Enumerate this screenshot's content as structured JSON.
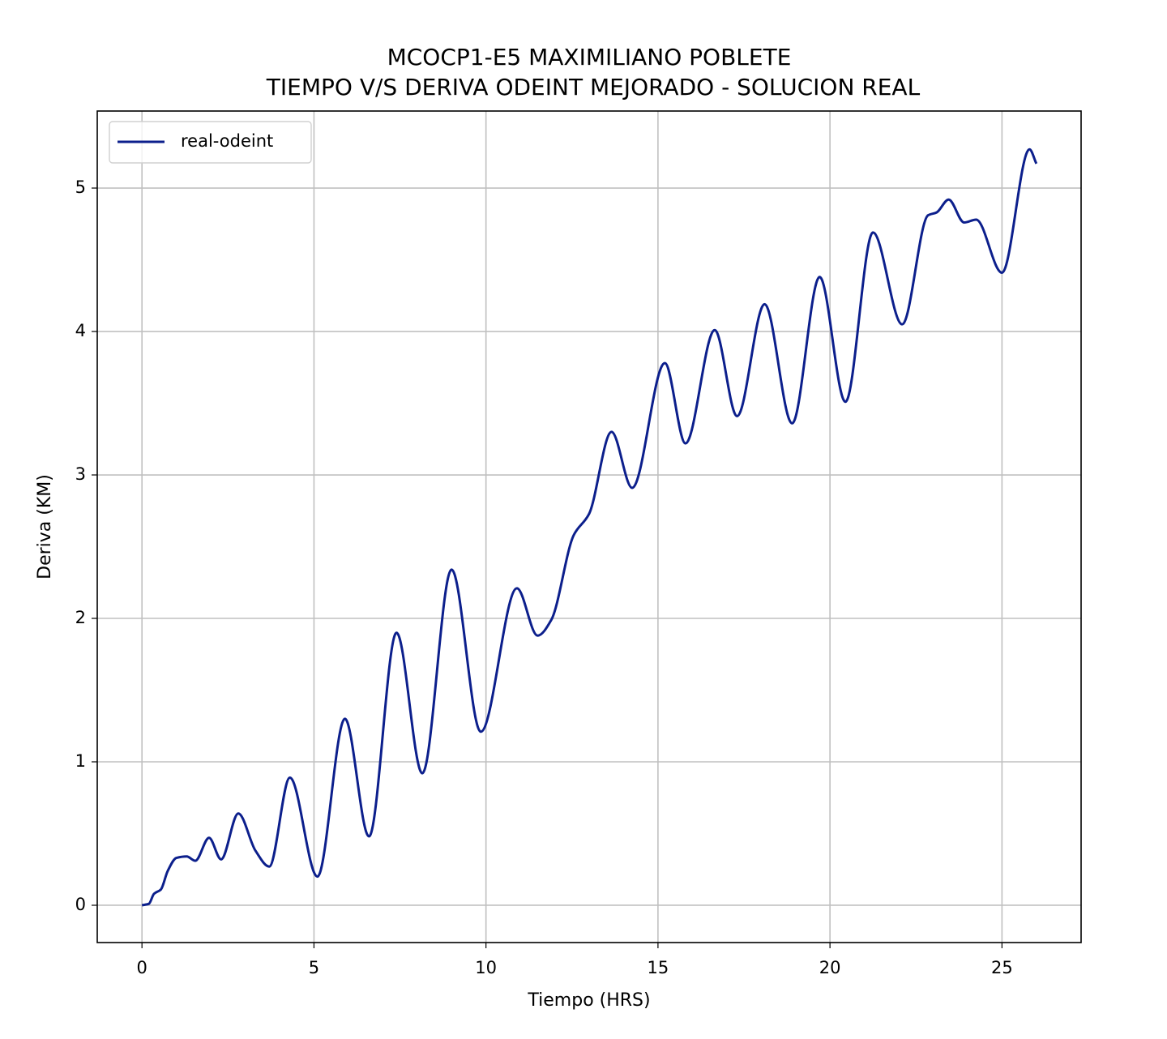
{
  "chart_data": {
    "type": "line",
    "title": [
      "MCOCP1-E5 MAXIMILIANO POBLETE",
      "TIEMPO V/S DERIVA ODEINT MEJORADO - SOLUCION REAL"
    ],
    "x_label": "Tiempo (HRS)",
    "y_label": "Deriva (KM)",
    "x": [
      0,
      0.2,
      0.35,
      0.55,
      0.75,
      1.0,
      1.3,
      1.55,
      1.95,
      2.3,
      2.8,
      3.3,
      3.7,
      4.3,
      5.1,
      5.9,
      6.6,
      7.4,
      8.15,
      9.0,
      9.85,
      10.9,
      11.5,
      11.9,
      12.55,
      13.0,
      13.65,
      14.25,
      15.2,
      15.8,
      16.65,
      17.3,
      18.1,
      18.9,
      19.7,
      20.45,
      21.25,
      22.1,
      22.85,
      23.1,
      23.45,
      23.9,
      24.25,
      25.0,
      25.8,
      26.0
    ],
    "series": [
      {
        "name": "real-odeint",
        "color": "#0c1f8c",
        "values": [
          0,
          0.01,
          0.08,
          0.11,
          0.24,
          0.33,
          0.34,
          0.31,
          0.47,
          0.32,
          0.64,
          0.38,
          0.27,
          0.89,
          0.2,
          1.3,
          0.48,
          1.9,
          0.92,
          2.34,
          1.21,
          2.21,
          1.88,
          1.99,
          2.58,
          2.73,
          3.3,
          2.91,
          3.78,
          3.22,
          4.01,
          3.41,
          4.19,
          3.36,
          4.38,
          3.51,
          4.69,
          4.05,
          4.81,
          4.83,
          4.92,
          4.76,
          4.78,
          4.41,
          5.27,
          5.17
        ]
      }
    ],
    "xlim": [
      -1.3,
      27.3
    ],
    "ylim": [
      -0.26,
      5.537
    ],
    "xticks": [
      0,
      5,
      10,
      15,
      20,
      25
    ],
    "yticks": [
      0,
      1,
      2,
      3,
      4,
      5
    ],
    "grid": true,
    "legend": "upper left"
  }
}
